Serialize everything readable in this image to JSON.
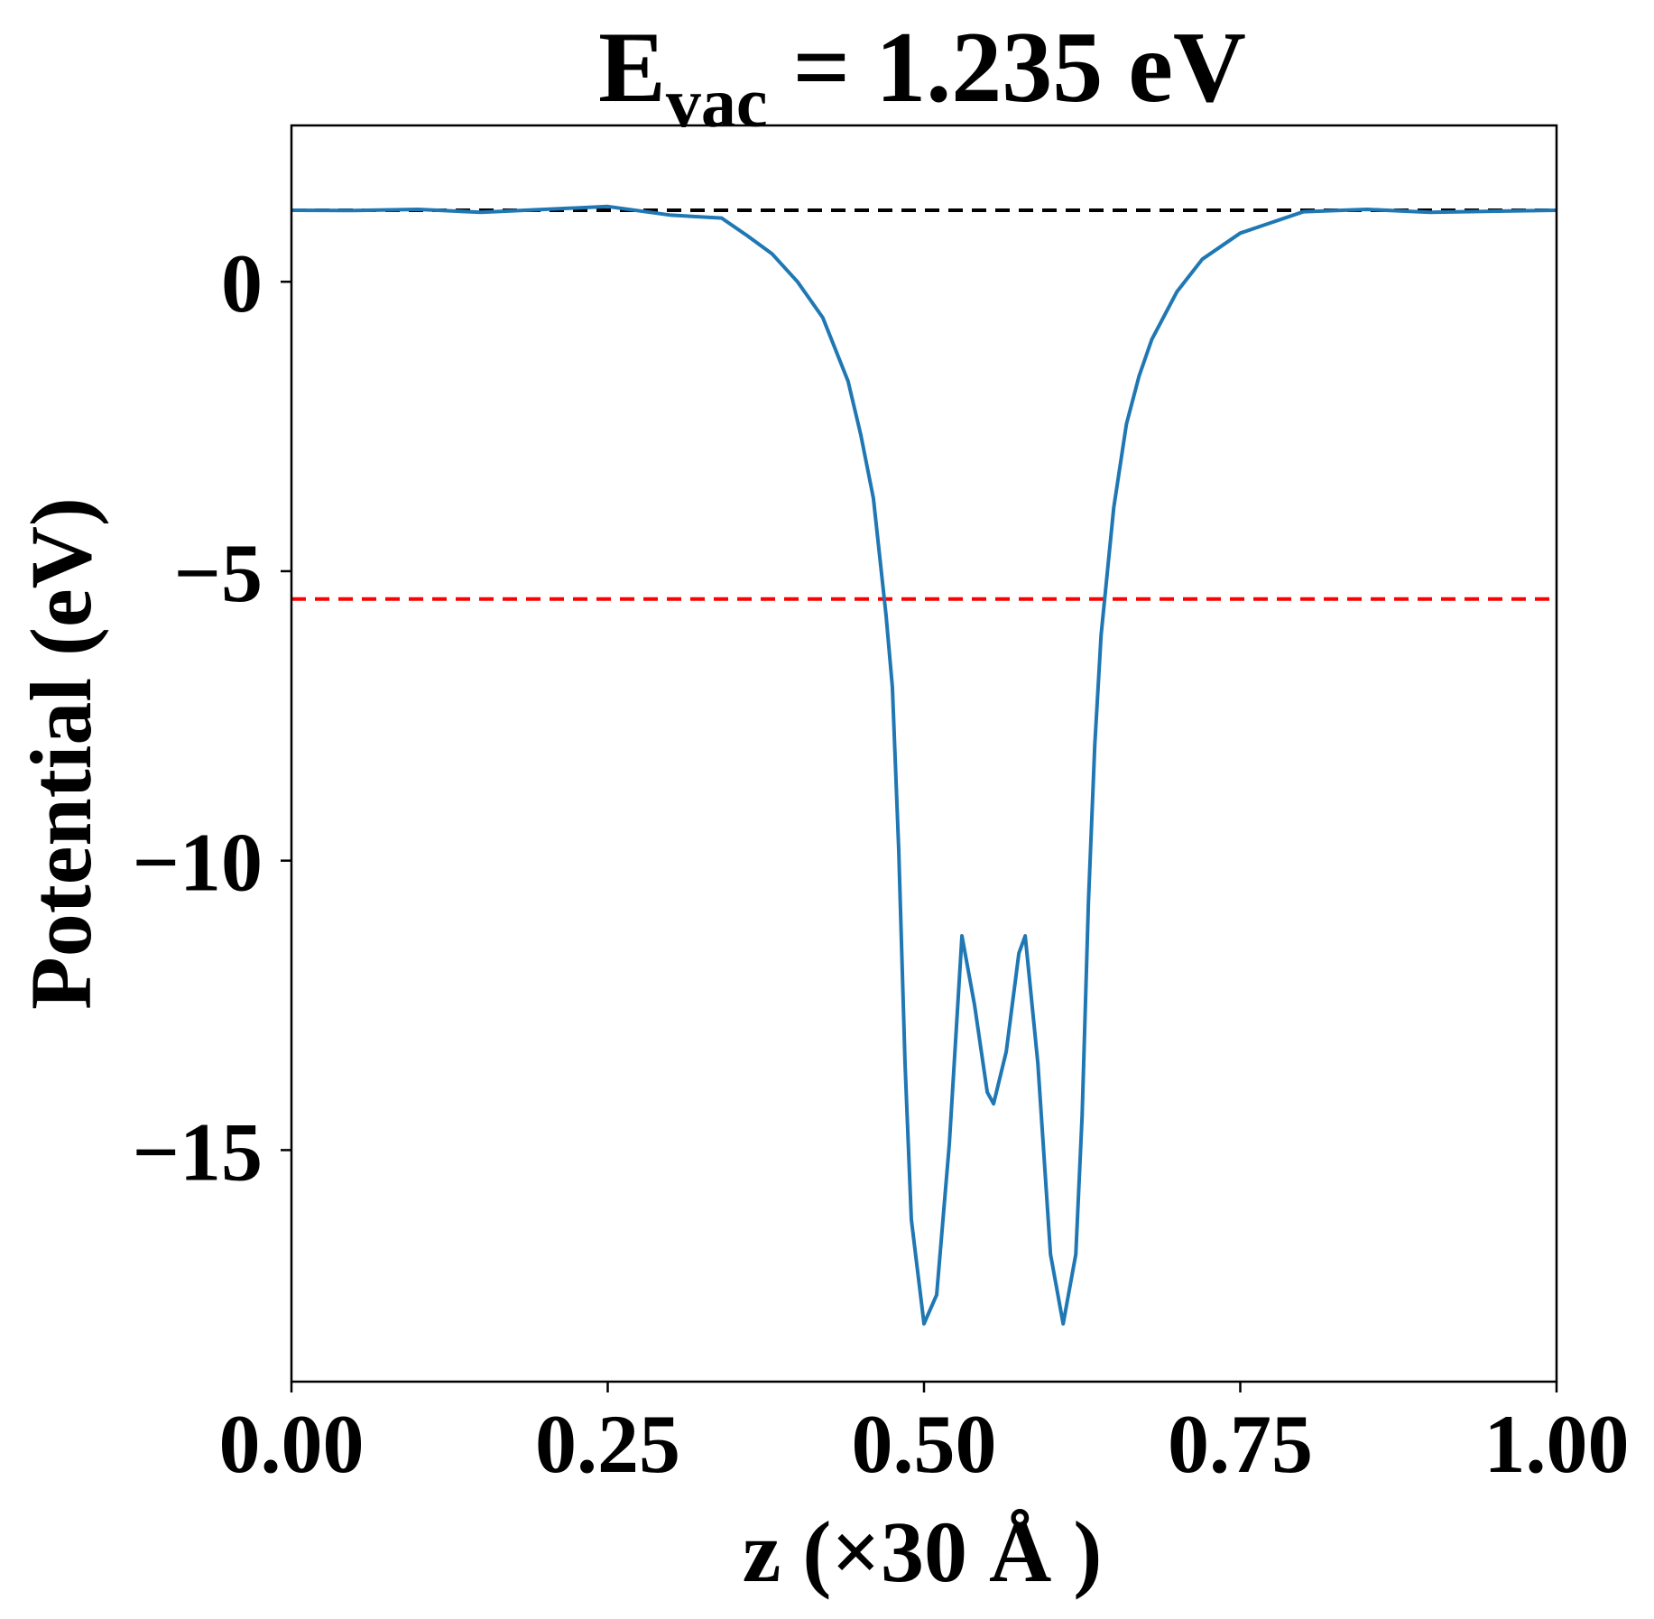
{
  "chart_data": {
    "type": "line",
    "title": [
      "E",
      "vac",
      " = 1.235 eV"
    ],
    "xlabel": "z (×30 Å )",
    "ylabel": "Potential (eV)",
    "xlim": [
      0,
      1
    ],
    "ylim": [
      -19,
      2.7
    ],
    "xticks": [
      {
        "value": 0,
        "label": "0.00"
      },
      {
        "value": 0.25,
        "label": "0.25"
      },
      {
        "value": 0.5,
        "label": "0.50"
      },
      {
        "value": 0.75,
        "label": "0.75"
      },
      {
        "value": 1,
        "label": "1.00"
      }
    ],
    "yticks": [
      0,
      {
        "value": -5,
        "label": "−5"
      },
      {
        "value": -10,
        "label": "−10"
      },
      {
        "value": -15,
        "label": "−15"
      }
    ],
    "grid": false,
    "hlines": [
      {
        "y": 1.235,
        "color": "#000000"
      },
      {
        "y": -5.48,
        "color": "#ff0000"
      }
    ],
    "series": [
      {
        "color": "#1f77b4",
        "x": [
          0,
          0.05,
          0.1,
          0.15,
          0.2,
          0.25,
          0.3,
          0.34,
          0.36,
          0.38,
          0.4,
          0.42,
          0.44,
          0.45,
          0.46,
          0.47,
          0.475,
          0.48,
          0.485,
          0.49,
          0.5,
          0.51,
          0.52,
          0.53,
          0.54,
          0.55,
          0.555,
          0.565,
          0.575,
          0.58,
          0.59,
          0.6,
          0.61,
          0.62,
          0.625,
          0.63,
          0.635,
          0.64,
          0.645,
          0.65,
          0.66,
          0.67,
          0.68,
          0.7,
          0.72,
          0.75,
          0.8,
          0.85,
          0.9,
          1.0
        ],
        "values": [
          1.235,
          1.23,
          1.25,
          1.2,
          1.25,
          1.3,
          1.15,
          1.1,
          0.8,
          0.48,
          0,
          -0.62,
          -1.72,
          -2.64,
          -3.74,
          -5.76,
          -7.0,
          -9.8,
          -13.5,
          -16.2,
          -18.0,
          -17.5,
          -14.9,
          -11.3,
          -12.5,
          -14.0,
          -14.2,
          -13.3,
          -11.6,
          -11.3,
          -13.5,
          -16.8,
          -18.0,
          -16.8,
          -14.4,
          -10.7,
          -8.0,
          -6.1,
          -5.0,
          -3.9,
          -2.46,
          -1.63,
          -1.0,
          -0.17,
          0.39,
          0.84,
          1.21,
          1.25,
          1.2,
          1.235
        ]
      }
    ]
  }
}
